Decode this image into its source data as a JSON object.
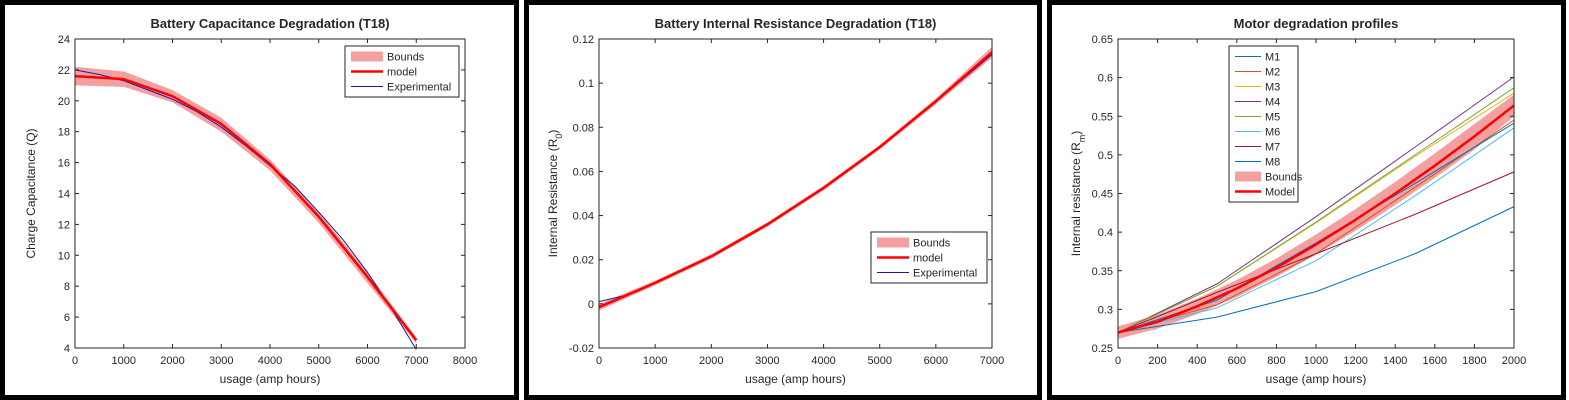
{
  "chart_data": [
    {
      "type": "line",
      "title": "Battery Capacitance Degradation (T18)",
      "xlabel": "usage (amp hours)",
      "ylabel": "Charge Capacitance (Q)",
      "xlim": [
        0,
        8000
      ],
      "ylim": [
        4,
        24
      ],
      "xticks": [
        "0",
        "1000",
        "2000",
        "3000",
        "4000",
        "5000",
        "6000",
        "7000",
        "8000"
      ],
      "yticks": [
        "4",
        "6",
        "8",
        "10",
        "12",
        "14",
        "16",
        "18",
        "20",
        "22",
        "24"
      ],
      "legend_position": "top-right",
      "legend": [
        "Bounds",
        "model",
        "Experimental"
      ],
      "bounds": {
        "color": "#f5a0a0",
        "upper": [
          [
            0,
            22.2
          ],
          [
            1000,
            21.9
          ],
          [
            2000,
            20.7
          ],
          [
            3000,
            18.9
          ],
          [
            4000,
            16.2
          ],
          [
            5000,
            12.8
          ],
          [
            6000,
            8.9
          ],
          [
            7000,
            4.7
          ]
        ],
        "lower": [
          [
            0,
            21.0
          ],
          [
            1000,
            20.9
          ],
          [
            2000,
            19.9
          ],
          [
            3000,
            18.0
          ],
          [
            4000,
            15.5
          ],
          [
            5000,
            12.1
          ],
          [
            6000,
            8.2
          ],
          [
            7000,
            4.3
          ]
        ]
      },
      "series": [
        {
          "name": "model",
          "color": "#ff0000",
          "width": 2.5,
          "points": [
            [
              0,
              21.6
            ],
            [
              1000,
              21.4
            ],
            [
              2000,
              20.3
            ],
            [
              3000,
              18.5
            ],
            [
              4000,
              15.9
            ],
            [
              5000,
              12.5
            ],
            [
              6000,
              8.6
            ],
            [
              7000,
              4.5
            ]
          ]
        },
        {
          "name": "Experimental",
          "color": "#1a1aa6",
          "width": 1,
          "points": [
            [
              0,
              22.0
            ],
            [
              500,
              21.7
            ],
            [
              1000,
              21.3
            ],
            [
              1500,
              20.7
            ],
            [
              2000,
              20.1
            ],
            [
              2500,
              19.3
            ],
            [
              3000,
              18.3
            ],
            [
              3500,
              17.1
            ],
            [
              4000,
              15.8
            ],
            [
              4500,
              14.5
            ],
            [
              5000,
              12.8
            ],
            [
              5500,
              11.0
            ],
            [
              6000,
              8.9
            ],
            [
              6500,
              6.5
            ],
            [
              7000,
              3.9
            ]
          ]
        }
      ]
    },
    {
      "type": "line",
      "title": "Battery Internal Resistance Degradation (T18)",
      "xlabel": "usage (amp hours)",
      "ylabel": "Internal Resistance (R",
      "ylabel_sub": "0",
      "ylabel_end": ")",
      "xlim": [
        0,
        7000
      ],
      "ylim": [
        -0.02,
        0.12
      ],
      "xticks": [
        "0",
        "1000",
        "2000",
        "3000",
        "4000",
        "5000",
        "6000",
        "7000"
      ],
      "yticks": [
        "-0.02",
        "0",
        "0.02",
        "0.04",
        "0.06",
        "0.08",
        "0.1",
        "0.12"
      ],
      "legend_position": "bottom-right",
      "legend": [
        "Bounds",
        "model",
        "Experimental"
      ],
      "bounds": {
        "color": "#f5a0a0",
        "upper": [
          [
            0,
            0.0
          ],
          [
            1000,
            0.0105
          ],
          [
            2000,
            0.0225
          ],
          [
            3000,
            0.037
          ],
          [
            4000,
            0.0535
          ],
          [
            5000,
            0.072
          ],
          [
            6000,
            0.093
          ],
          [
            7000,
            0.1165
          ]
        ],
        "lower": [
          [
            0,
            -0.003
          ],
          [
            1000,
            0.0085
          ],
          [
            2000,
            0.0205
          ],
          [
            3000,
            0.035
          ],
          [
            4000,
            0.0515
          ],
          [
            5000,
            0.07
          ],
          [
            6000,
            0.0905
          ],
          [
            7000,
            0.1115
          ]
        ]
      },
      "series": [
        {
          "name": "model",
          "color": "#ff0000",
          "width": 2.5,
          "points": [
            [
              0,
              -0.0015
            ],
            [
              1000,
              0.0095
            ],
            [
              2000,
              0.0215
            ],
            [
              3000,
              0.036
            ],
            [
              4000,
              0.0525
            ],
            [
              5000,
              0.071
            ],
            [
              6000,
              0.0918
            ],
            [
              7000,
              0.114
            ]
          ]
        },
        {
          "name": "Experimental",
          "color": "#1a1aa6",
          "width": 1,
          "points": [
            [
              0,
              0.001
            ],
            [
              500,
              0.004
            ],
            [
              1000,
              0.0095
            ],
            [
              2000,
              0.0215
            ],
            [
              3000,
              0.036
            ],
            [
              4000,
              0.0522
            ],
            [
              5000,
              0.0708
            ],
            [
              6000,
              0.0915
            ],
            [
              7000,
              0.113
            ]
          ]
        }
      ]
    },
    {
      "type": "line",
      "title": "Motor degradation profiles",
      "xlabel": "usage (amp hours)",
      "ylabel": "Internal resistance (R",
      "ylabel_sub": "m",
      "ylabel_end": ")",
      "xlim": [
        0,
        2000
      ],
      "ylim": [
        0.25,
        0.65
      ],
      "xticks": [
        "0",
        "200",
        "400",
        "600",
        "800",
        "1000",
        "1200",
        "1400",
        "1600",
        "1800",
        "2000"
      ],
      "yticks": [
        "0.25",
        "0.3",
        "0.35",
        "0.4",
        "0.45",
        "0.5",
        "0.55",
        "0.6",
        "0.65"
      ],
      "legend_position": "top-left",
      "legend": [
        "M1",
        "M2",
        "M3",
        "M4",
        "M5",
        "M6",
        "M7",
        "M8",
        "Bounds",
        "Model"
      ],
      "bounds": {
        "color": "#f5a0a0",
        "upper": [
          [
            0,
            0.278
          ],
          [
            200,
            0.293
          ],
          [
            400,
            0.314
          ],
          [
            600,
            0.338
          ],
          [
            800,
            0.366
          ],
          [
            1000,
            0.397
          ],
          [
            1200,
            0.43
          ],
          [
            1400,
            0.465
          ],
          [
            1600,
            0.502
          ],
          [
            1800,
            0.54
          ],
          [
            2000,
            0.578
          ]
        ],
        "lower": [
          [
            0,
            0.262
          ],
          [
            200,
            0.275
          ],
          [
            400,
            0.294
          ],
          [
            600,
            0.316
          ],
          [
            800,
            0.342
          ],
          [
            1000,
            0.371
          ],
          [
            1200,
            0.402
          ],
          [
            1400,
            0.435
          ],
          [
            1600,
            0.47
          ],
          [
            1800,
            0.507
          ],
          [
            2000,
            0.55
          ]
        ]
      },
      "series": [
        {
          "name": "M1",
          "color": "#0072bd",
          "width": 1,
          "points": [
            [
              0,
              0.27
            ],
            [
              500,
              0.29
            ],
            [
              1000,
              0.323
            ],
            [
              1500,
              0.372
            ],
            [
              2000,
              0.433
            ]
          ]
        },
        {
          "name": "M2",
          "color": "#d95319",
          "width": 1,
          "points": [
            [
              0,
              0.27
            ],
            [
              500,
              0.306
            ],
            [
              1000,
              0.372
            ],
            [
              1500,
              0.458
            ],
            [
              2000,
              0.545
            ]
          ]
        },
        {
          "name": "M3",
          "color": "#edb120",
          "width": 1,
          "points": [
            [
              0,
              0.27
            ],
            [
              500,
              0.33
            ],
            [
              1000,
              0.412
            ],
            [
              1500,
              0.498
            ],
            [
              2000,
              0.58
            ]
          ]
        },
        {
          "name": "M4",
          "color": "#7e2f8e",
          "width": 1,
          "points": [
            [
              0,
              0.27
            ],
            [
              500,
              0.333
            ],
            [
              1000,
              0.42
            ],
            [
              1500,
              0.51
            ],
            [
              2000,
              0.601
            ]
          ]
        },
        {
          "name": "M5",
          "color": "#77ac30",
          "width": 1,
          "points": [
            [
              0,
              0.27
            ],
            [
              500,
              0.33
            ],
            [
              1000,
              0.413
            ],
            [
              1500,
              0.5
            ],
            [
              2000,
              0.587
            ]
          ]
        },
        {
          "name": "M6",
          "color": "#4dbeee",
          "width": 1,
          "points": [
            [
              0,
              0.27
            ],
            [
              500,
              0.302
            ],
            [
              1000,
              0.363
            ],
            [
              1500,
              0.447
            ],
            [
              2000,
              0.535
            ]
          ]
        },
        {
          "name": "M7",
          "color": "#a2142f",
          "width": 1,
          "points": [
            [
              0,
              0.27
            ],
            [
              500,
              0.322
            ],
            [
              1000,
              0.372
            ],
            [
              1500,
              0.423
            ],
            [
              2000,
              0.478
            ]
          ]
        },
        {
          "name": "M8",
          "color": "#0072bd",
          "width": 1,
          "points": [
            [
              0,
              0.27
            ],
            [
              500,
              0.312
            ],
            [
              1000,
              0.386
            ],
            [
              1500,
              0.463
            ],
            [
              2000,
              0.541
            ]
          ]
        },
        {
          "name": "Model",
          "color": "#ff0000",
          "width": 2.5,
          "points": [
            [
              0,
              0.27
            ],
            [
              200,
              0.284
            ],
            [
              400,
              0.304
            ],
            [
              600,
              0.327
            ],
            [
              800,
              0.354
            ],
            [
              1000,
              0.384
            ],
            [
              1200,
              0.416
            ],
            [
              1400,
              0.45
            ],
            [
              1600,
              0.486
            ],
            [
              1800,
              0.524
            ],
            [
              2000,
              0.564
            ]
          ]
        }
      ]
    }
  ]
}
